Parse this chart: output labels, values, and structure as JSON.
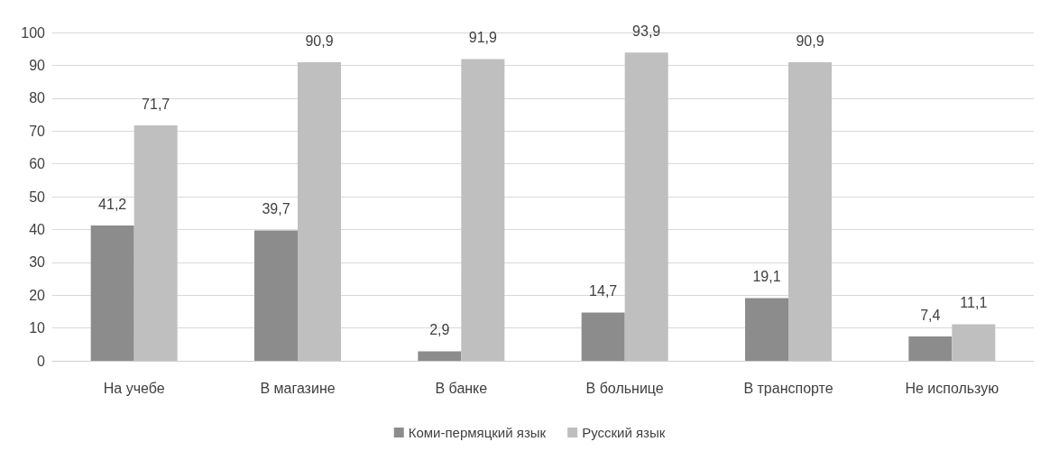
{
  "chart_data": {
    "type": "bar",
    "categories": [
      "На учебе",
      "В магазине",
      "В банке",
      "В больнице",
      "В транспорте",
      "Не использую"
    ],
    "series": [
      {
        "name": "Коми-пермяцкий язык",
        "color": "#8c8c8c",
        "values": [
          41.2,
          39.7,
          2.9,
          14.7,
          19.1,
          7.4
        ],
        "value_labels": [
          "41,2",
          "39,7",
          "2,9",
          "14,7",
          "19,1",
          "7,4"
        ]
      },
      {
        "name": "Русский язык",
        "color": "#bfbfbf",
        "values": [
          71.7,
          90.9,
          91.9,
          93.9,
          90.9,
          11.1
        ],
        "value_labels": [
          "71,7",
          "90,9",
          "91,9",
          "93,9",
          "90,9",
          "11,1"
        ]
      }
    ],
    "ylim": [
      0,
      100
    ],
    "yticks": [
      0,
      10,
      20,
      30,
      40,
      50,
      60,
      70,
      80,
      90,
      100
    ],
    "grid": "y",
    "legend": "bottom"
  }
}
